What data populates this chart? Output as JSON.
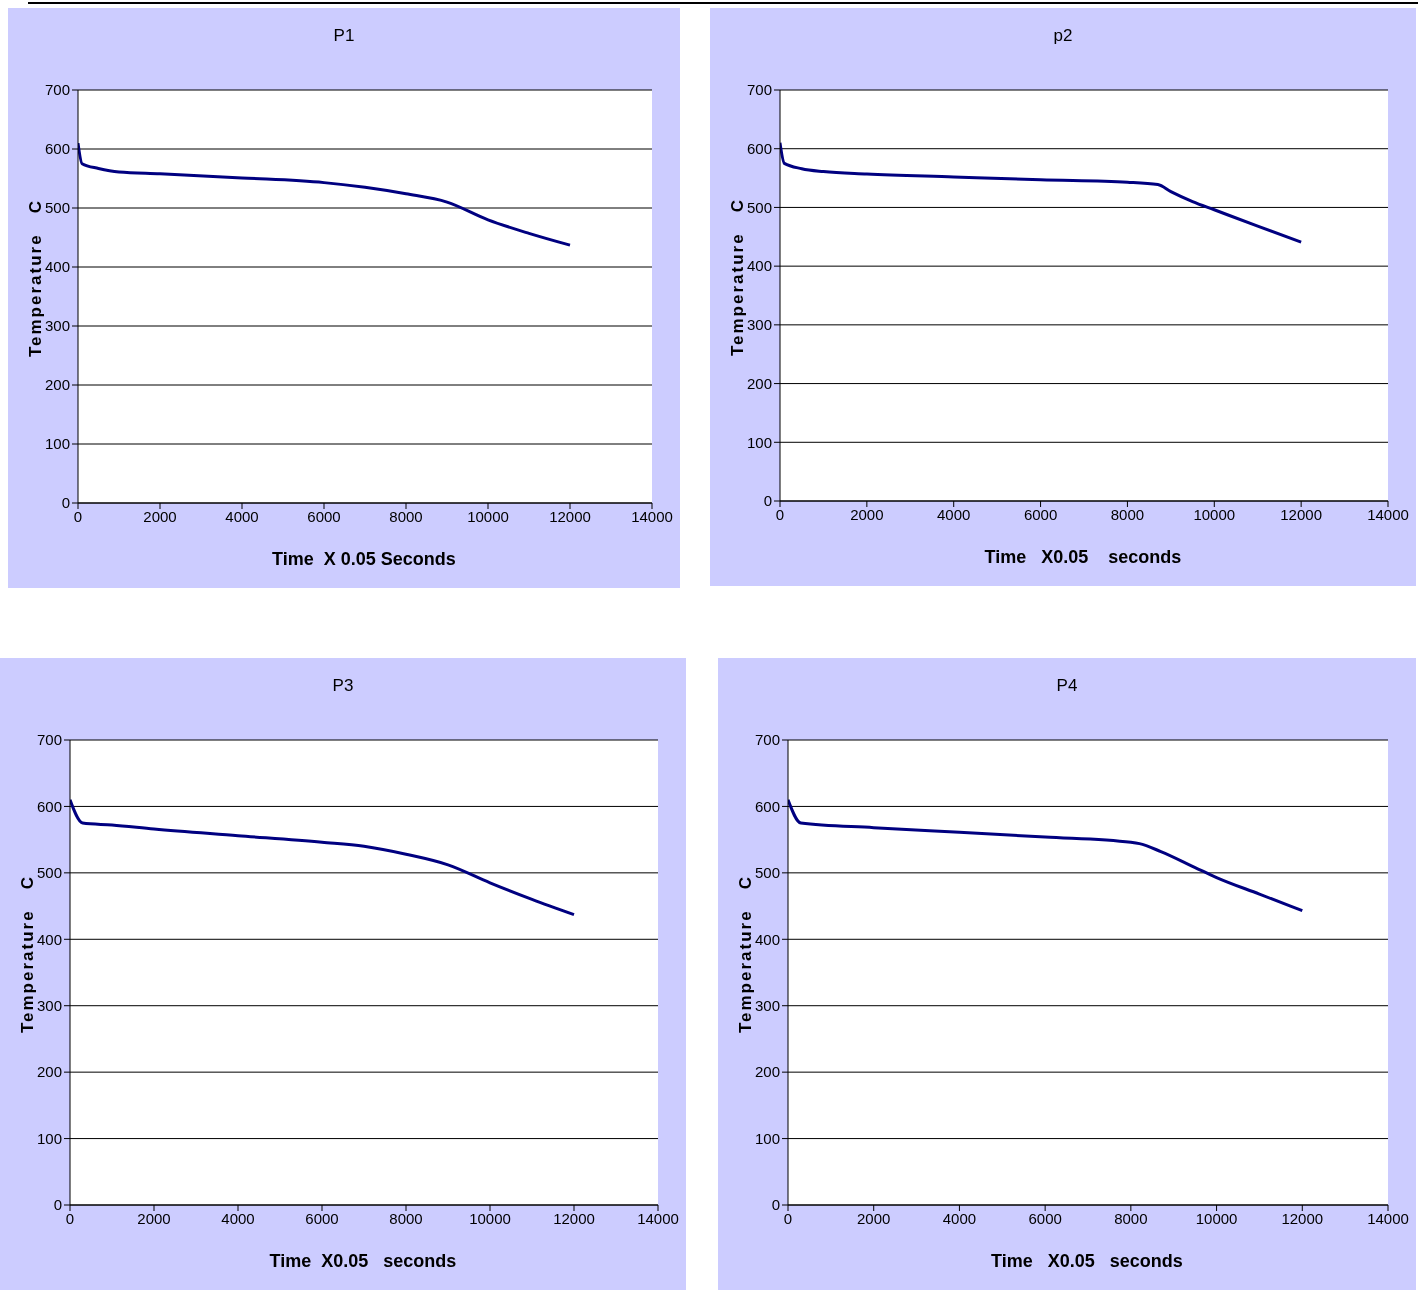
{
  "chart_data": [
    {
      "type": "line",
      "title": "P1",
      "xlabel": "Time  X 0.05 Seconds",
      "ylabel": "Temperature   C",
      "x": [
        0,
        100,
        500,
        1000,
        2000,
        4000,
        6000,
        7000,
        8000,
        9000,
        10000,
        11000,
        12000
      ],
      "series": [
        {
          "color": "#000080",
          "values": [
            610,
            575,
            567,
            561,
            558,
            551,
            543,
            535,
            524,
            510,
            480,
            457,
            437
          ]
        }
      ],
      "xlim": [
        0,
        14000
      ],
      "ylim": [
        0,
        700
      ],
      "xticks": [
        0,
        2000,
        4000,
        6000,
        8000,
        10000,
        12000,
        14000
      ],
      "yticks": [
        0,
        100,
        200,
        300,
        400,
        500,
        600,
        700
      ],
      "grid": "y",
      "marker": "none",
      "line_style": "solid"
    },
    {
      "type": "line",
      "title": "p2",
      "xlabel": "Time   X0.05    seconds",
      "ylabel": "Temperature   C",
      "x": [
        0,
        100,
        500,
        1000,
        2000,
        4000,
        6000,
        8000,
        8700,
        9000,
        9500,
        10000,
        11000,
        12000
      ],
      "series": [
        {
          "color": "#000080",
          "values": [
            610,
            575,
            566,
            561,
            557,
            552,
            547,
            543,
            539,
            527,
            510,
            496,
            468,
            441
          ]
        }
      ],
      "xlim": [
        0,
        14000
      ],
      "ylim": [
        0,
        700
      ],
      "xticks": [
        0,
        2000,
        4000,
        6000,
        8000,
        10000,
        12000,
        14000
      ],
      "yticks": [
        0,
        100,
        200,
        300,
        400,
        500,
        600,
        700
      ],
      "grid": "y",
      "marker": "none",
      "line_style": "solid"
    },
    {
      "type": "line",
      "title": "P3",
      "xlabel": "Time  X0.05   seconds",
      "ylabel": "Temperature   C",
      "x": [
        0,
        300,
        1000,
        2000,
        4000,
        6000,
        7000,
        8000,
        9000,
        10000,
        11000,
        12000
      ],
      "series": [
        {
          "color": "#000080",
          "values": [
            610,
            575,
            572,
            566,
            556,
            546,
            540,
            528,
            512,
            485,
            460,
            437
          ]
        }
      ],
      "xlim": [
        0,
        14000
      ],
      "ylim": [
        0,
        700
      ],
      "xticks": [
        0,
        2000,
        4000,
        6000,
        8000,
        10000,
        12000,
        14000
      ],
      "yticks": [
        0,
        100,
        200,
        300,
        400,
        500,
        600,
        700
      ],
      "grid": "y",
      "marker": "none",
      "line_style": "solid"
    },
    {
      "type": "line",
      "title": "P4",
      "xlabel": "Time   X0.05   seconds",
      "ylabel": "Temperature   C",
      "x": [
        0,
        300,
        2000,
        4000,
        6000,
        8000,
        8200,
        8700,
        9500,
        10000,
        11000,
        12000
      ],
      "series": [
        {
          "color": "#000080",
          "values": [
            610,
            575,
            568,
            561,
            554,
            546,
            544,
            532,
            508,
            493,
            468,
            443
          ]
        }
      ],
      "xlim": [
        0,
        14000
      ],
      "ylim": [
        0,
        700
      ],
      "xticks": [
        0,
        2000,
        4000,
        6000,
        8000,
        10000,
        12000,
        14000
      ],
      "yticks": [
        0,
        100,
        200,
        300,
        400,
        500,
        600,
        700
      ],
      "grid": "y",
      "marker": "none",
      "line_style": "solid"
    }
  ]
}
